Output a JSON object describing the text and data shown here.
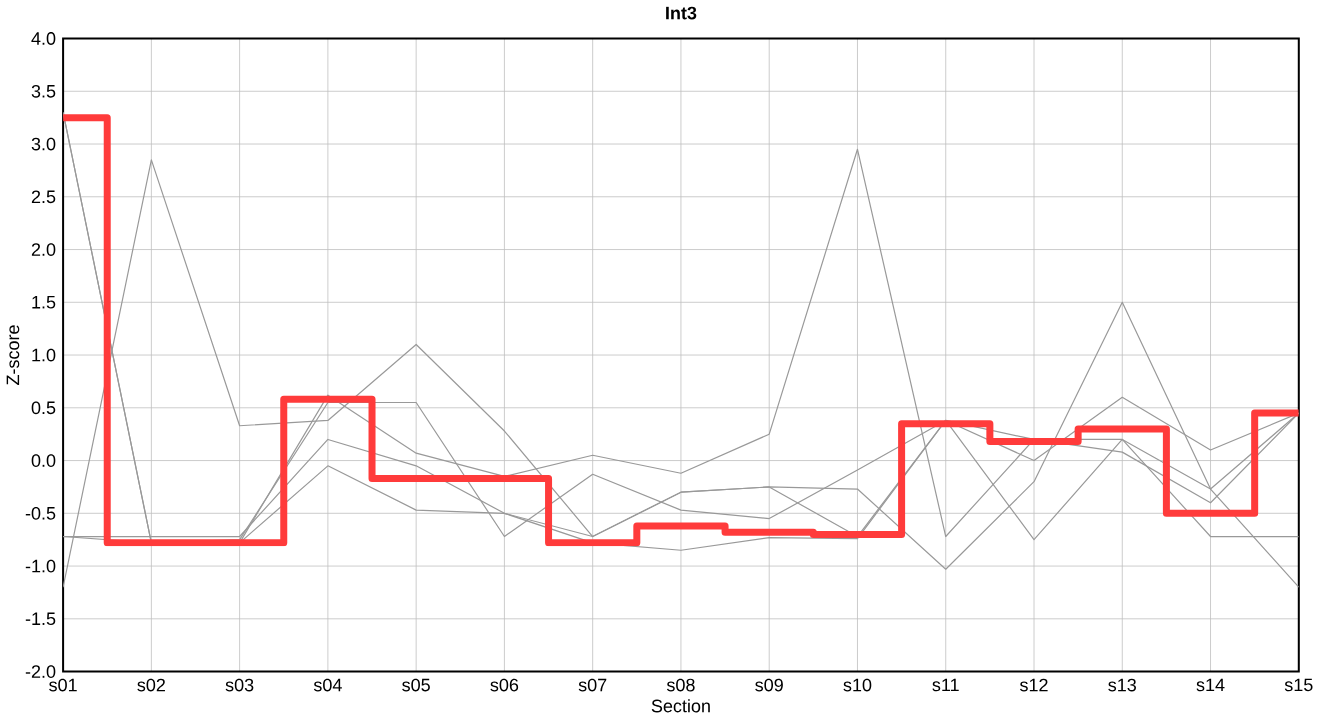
{
  "chart_data": {
    "type": "line",
    "title": "Int3",
    "xlabel": "Section",
    "ylabel": "Z-score",
    "categories": [
      "s01",
      "s02",
      "s03",
      "s04",
      "s05",
      "s06",
      "s07",
      "s08",
      "s09",
      "s10",
      "s11",
      "s12",
      "s13",
      "s14",
      "s15"
    ],
    "ylim": [
      -2,
      4
    ],
    "yticks": [
      {
        "value": -2,
        "label": "-2.0"
      },
      {
        "value": -1.5,
        "label": "-1.5"
      },
      {
        "value": -1,
        "label": "-1.0"
      },
      {
        "value": -0.5,
        "label": "-0.5"
      },
      {
        "value": 0,
        "label": "0.0"
      },
      {
        "value": 0.5,
        "label": "0.5"
      },
      {
        "value": 1,
        "label": "1.0"
      },
      {
        "value": 1.5,
        "label": "1.5"
      },
      {
        "value": 2,
        "label": "2.0"
      },
      {
        "value": 2.5,
        "label": "2.5"
      },
      {
        "value": 3,
        "label": "3.0"
      },
      {
        "value": 3.5,
        "label": "3.5"
      },
      {
        "value": 4,
        "label": "4.0"
      }
    ],
    "grid": true,
    "marker": "none",
    "series": [
      {
        "color": "#999999",
        "values": [
          -1.2,
          2.85,
          0.33,
          0.38,
          1.1,
          0.28,
          -0.72,
          -0.3,
          -0.25,
          -0.27,
          -1.03,
          -0.2,
          1.5,
          -0.27,
          -1.2
        ]
      },
      {
        "color": "#999999",
        "values": [
          3.3,
          -0.78,
          -0.78,
          0.62,
          0.07,
          -0.15,
          0.05,
          -0.12,
          0.25,
          2.95,
          -0.72,
          0.2,
          0.08,
          -0.4,
          0.45
        ]
      },
      {
        "color": "#999999",
        "values": [
          3.3,
          -0.78,
          -0.75,
          0.55,
          0.55,
          -0.72,
          -0.13,
          -0.47,
          -0.55,
          -0.09,
          0.38,
          0.0,
          0.6,
          0.1,
          0.45
        ]
      },
      {
        "color": "#999999",
        "values": [
          -0.72,
          -0.72,
          -0.72,
          0.2,
          -0.05,
          -0.5,
          -0.78,
          -0.85,
          -0.73,
          -0.74,
          0.38,
          -0.75,
          0.2,
          -0.72,
          -0.72
        ]
      },
      {
        "color": "#999999",
        "values": [
          -0.72,
          -0.78,
          -0.78,
          -0.05,
          -0.47,
          -0.5,
          -0.72,
          -0.3,
          -0.25,
          -0.72,
          0.38,
          0.2,
          0.2,
          -0.27,
          0.45
        ]
      },
      {
        "type": "step",
        "color": "#ff3b3b",
        "values": [
          3.25,
          -0.78,
          -0.78,
          0.58,
          -0.17,
          -0.17,
          -0.78,
          -0.62,
          -0.68,
          -0.7,
          0.35,
          0.18,
          0.3,
          -0.5,
          0.45
        ]
      }
    ]
  }
}
